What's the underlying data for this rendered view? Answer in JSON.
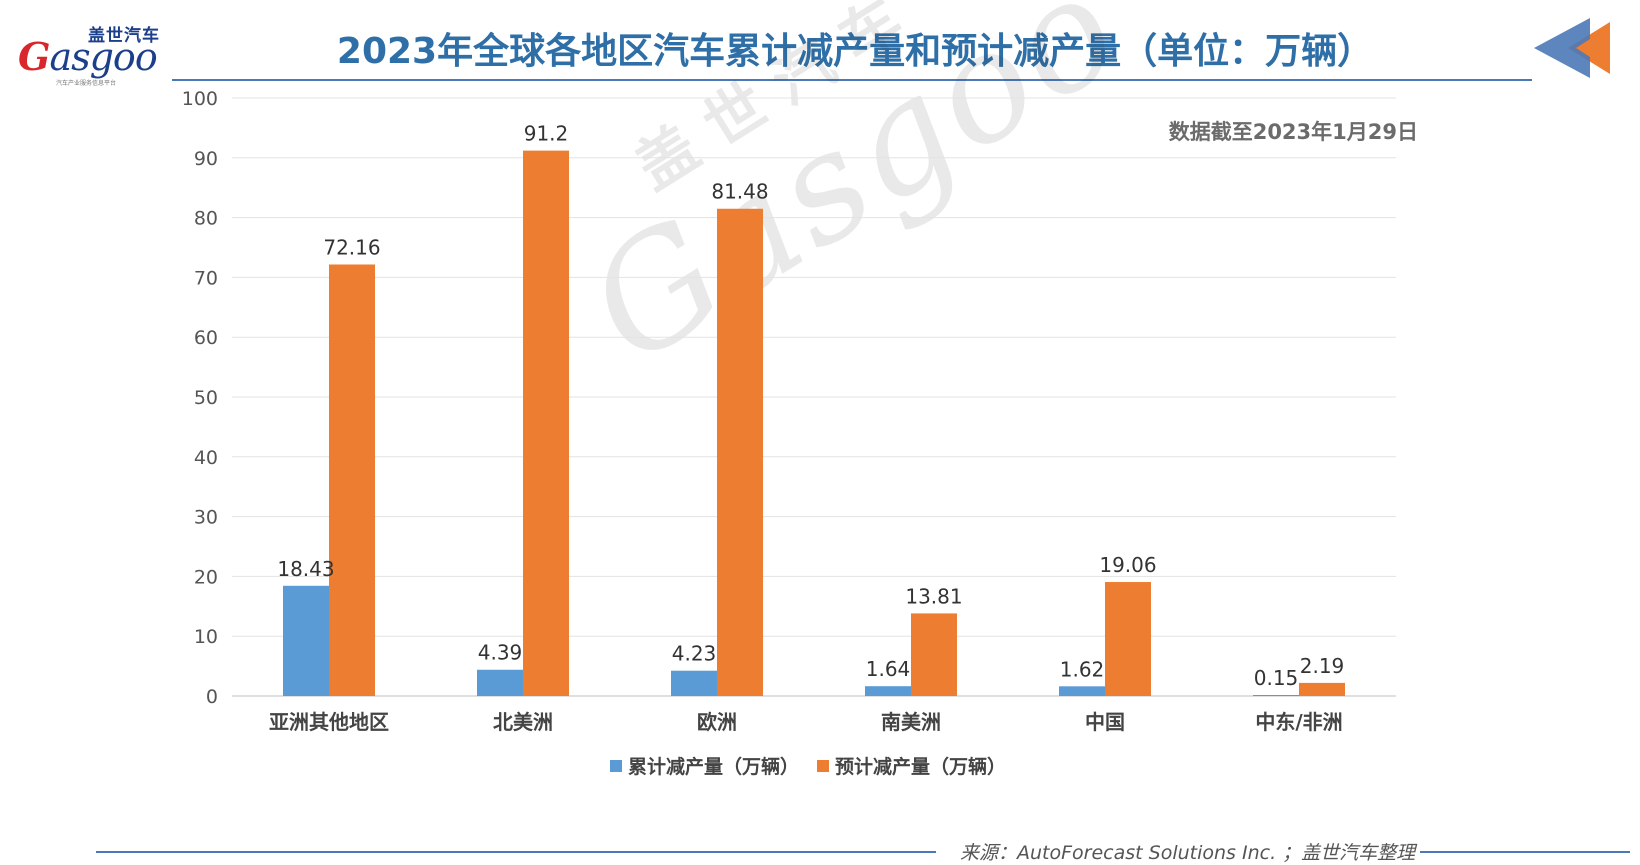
{
  "logo": {
    "cn": "盖世汽车",
    "en_first": "G",
    "en_rest": "asgoo",
    "tagline": "汽车产业服务信息平台"
  },
  "title": "2023年全球各地区汽车累计减产量和预计减产量（单位：万辆）",
  "note": "数据截至2023年1月29日",
  "legend": {
    "series1_label": "累计减产量（万辆）",
    "series2_label": "预计减产量（万辆）"
  },
  "source": "来源：AutoForecast Solutions Inc. ；盖世汽车整理",
  "colors": {
    "series1": "#5b9bd5",
    "series2": "#ed7d31",
    "title": "#2f6fa7",
    "rule": "#4b79b8",
    "grid": "#e3e3e3",
    "axis_text": "#555555"
  },
  "chart_data": {
    "type": "bar",
    "categories": [
      "亚洲其他地区",
      "北美洲",
      "欧洲",
      "南美洲",
      "中国",
      "中东/非洲"
    ],
    "series": [
      {
        "name": "累计减产量（万辆）",
        "values": [
          18.43,
          4.39,
          4.23,
          1.64,
          1.62,
          0.15
        ]
      },
      {
        "name": "预计减产量（万辆）",
        "values": [
          72.16,
          91.2,
          81.48,
          13.81,
          19.06,
          2.19
        ]
      }
    ],
    "value_labels": [
      [
        "18.43",
        "4.39",
        "4.23",
        "1.64",
        "1.62",
        "0.15"
      ],
      [
        "72.16",
        "91.2",
        "81.48",
        "13.81",
        "19.06",
        "2.19"
      ]
    ],
    "yticks": [
      0,
      10,
      20,
      30,
      40,
      50,
      60,
      70,
      80,
      90,
      100
    ],
    "ylim": [
      0,
      100
    ],
    "grid": true,
    "legend_position": "bottom"
  }
}
